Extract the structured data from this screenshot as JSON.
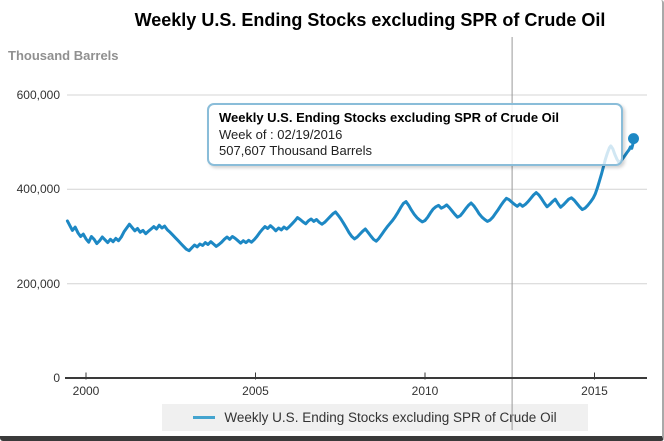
{
  "title": "Weekly U.S. Ending Stocks excluding SPR of Crude Oil",
  "y_axis_label": "Thousand Barrels",
  "tooltip": {
    "title": "Weekly U.S. Ending Stocks excluding SPR of Crude Oil",
    "week_label": "Week of : 02/19/2016",
    "value_label": "507,607 Thousand Barrels"
  },
  "legend": {
    "label": "Weekly U.S. Ending Stocks excluding SPR of Crude Oil"
  },
  "colors": {
    "series": "#1d88c4",
    "legend_dash": "#44a4cf",
    "grid": "#d4d4d4",
    "axis": "#3a3a3a",
    "crosshair": "#999999",
    "tooltip_border": "#8abdd9",
    "title_text": "#000000",
    "unit_text": "#909090",
    "tick_text": "#333333"
  },
  "chart_data": {
    "type": "line",
    "title": "Weekly U.S. Ending Stocks excluding SPR of Crude Oil",
    "xlabel": "",
    "ylabel": "Thousand Barrels",
    "xlim": [
      1999.44,
      2016.55
    ],
    "ylim": [
      0,
      620000
    ],
    "grid": "horizontal",
    "legend_position": "bottom",
    "x_ticks": [
      {
        "value": 2000,
        "label": "2000"
      },
      {
        "value": 2005,
        "label": "2005"
      },
      {
        "value": 2010,
        "label": "2010"
      },
      {
        "value": 2015,
        "label": "2015"
      }
    ],
    "y_ticks": [
      {
        "value": 0,
        "label": "0"
      },
      {
        "value": 200000,
        "label": "200,000"
      },
      {
        "value": 400000,
        "label": "400,000"
      },
      {
        "value": 600000,
        "label": "600,000"
      }
    ],
    "crosshair_year": 2012.57,
    "highlight_point": {
      "year": 2016.15,
      "value": 507607
    },
    "series": [
      {
        "name": "Weekly U.S. Ending Stocks excluding SPR of Crude Oil",
        "color": "#1d88c4",
        "points": [
          [
            1999.45,
            333000
          ],
          [
            1999.53,
            322000
          ],
          [
            1999.6,
            313000
          ],
          [
            1999.68,
            320000
          ],
          [
            1999.76,
            308000
          ],
          [
            1999.84,
            300000
          ],
          [
            1999.92,
            305000
          ],
          [
            2000.0,
            295000
          ],
          [
            2000.08,
            288000
          ],
          [
            2000.16,
            300000
          ],
          [
            2000.24,
            294000
          ],
          [
            2000.32,
            285000
          ],
          [
            2000.4,
            291000
          ],
          [
            2000.48,
            299000
          ],
          [
            2000.56,
            293000
          ],
          [
            2000.64,
            287000
          ],
          [
            2000.72,
            294000
          ],
          [
            2000.8,
            289000
          ],
          [
            2000.88,
            296000
          ],
          [
            2000.96,
            291000
          ],
          [
            2001.04,
            299000
          ],
          [
            2001.12,
            310000
          ],
          [
            2001.2,
            318000
          ],
          [
            2001.28,
            326000
          ],
          [
            2001.36,
            319000
          ],
          [
            2001.44,
            312000
          ],
          [
            2001.52,
            317000
          ],
          [
            2001.6,
            309000
          ],
          [
            2001.68,
            313000
          ],
          [
            2001.76,
            306000
          ],
          [
            2001.84,
            311000
          ],
          [
            2001.92,
            316000
          ],
          [
            2002.0,
            321000
          ],
          [
            2002.08,
            316000
          ],
          [
            2002.16,
            324000
          ],
          [
            2002.24,
            318000
          ],
          [
            2002.32,
            322000
          ],
          [
            2002.4,
            314000
          ],
          [
            2002.48,
            309000
          ],
          [
            2002.56,
            303000
          ],
          [
            2002.64,
            297000
          ],
          [
            2002.72,
            291000
          ],
          [
            2002.8,
            285000
          ],
          [
            2002.88,
            279000
          ],
          [
            2002.96,
            273000
          ],
          [
            2003.04,
            270000
          ],
          [
            2003.12,
            276000
          ],
          [
            2003.2,
            282000
          ],
          [
            2003.28,
            278000
          ],
          [
            2003.36,
            284000
          ],
          [
            2003.44,
            281000
          ],
          [
            2003.52,
            287000
          ],
          [
            2003.6,
            283000
          ],
          [
            2003.68,
            289000
          ],
          [
            2003.76,
            284000
          ],
          [
            2003.84,
            279000
          ],
          [
            2003.92,
            283000
          ],
          [
            2004.0,
            288000
          ],
          [
            2004.08,
            294000
          ],
          [
            2004.16,
            299000
          ],
          [
            2004.24,
            294000
          ],
          [
            2004.32,
            300000
          ],
          [
            2004.4,
            296000
          ],
          [
            2004.48,
            291000
          ],
          [
            2004.56,
            286000
          ],
          [
            2004.64,
            291000
          ],
          [
            2004.72,
            287000
          ],
          [
            2004.8,
            292000
          ],
          [
            2004.88,
            288000
          ],
          [
            2004.96,
            293000
          ],
          [
            2005.04,
            300000
          ],
          [
            2005.12,
            308000
          ],
          [
            2005.2,
            315000
          ],
          [
            2005.28,
            321000
          ],
          [
            2005.36,
            317000
          ],
          [
            2005.44,
            323000
          ],
          [
            2005.52,
            318000
          ],
          [
            2005.6,
            312000
          ],
          [
            2005.68,
            318000
          ],
          [
            2005.76,
            314000
          ],
          [
            2005.84,
            320000
          ],
          [
            2005.92,
            316000
          ],
          [
            2006.0,
            321000
          ],
          [
            2006.08,
            327000
          ],
          [
            2006.16,
            333000
          ],
          [
            2006.24,
            340000
          ],
          [
            2006.32,
            336000
          ],
          [
            2006.4,
            331000
          ],
          [
            2006.48,
            327000
          ],
          [
            2006.56,
            333000
          ],
          [
            2006.64,
            337000
          ],
          [
            2006.72,
            332000
          ],
          [
            2006.8,
            336000
          ],
          [
            2006.88,
            330000
          ],
          [
            2006.96,
            326000
          ],
          [
            2007.04,
            330000
          ],
          [
            2007.12,
            336000
          ],
          [
            2007.2,
            342000
          ],
          [
            2007.28,
            348000
          ],
          [
            2007.36,
            352000
          ],
          [
            2007.44,
            345000
          ],
          [
            2007.52,
            337000
          ],
          [
            2007.6,
            328000
          ],
          [
            2007.68,
            318000
          ],
          [
            2007.76,
            308000
          ],
          [
            2007.84,
            300000
          ],
          [
            2007.92,
            295000
          ],
          [
            2008.0,
            299000
          ],
          [
            2008.08,
            305000
          ],
          [
            2008.16,
            311000
          ],
          [
            2008.24,
            316000
          ],
          [
            2008.32,
            309000
          ],
          [
            2008.4,
            301000
          ],
          [
            2008.48,
            294000
          ],
          [
            2008.56,
            290000
          ],
          [
            2008.64,
            296000
          ],
          [
            2008.72,
            304000
          ],
          [
            2008.8,
            312000
          ],
          [
            2008.88,
            320000
          ],
          [
            2008.96,
            327000
          ],
          [
            2009.04,
            334000
          ],
          [
            2009.12,
            342000
          ],
          [
            2009.2,
            351000
          ],
          [
            2009.28,
            361000
          ],
          [
            2009.36,
            370000
          ],
          [
            2009.44,
            374000
          ],
          [
            2009.52,
            366000
          ],
          [
            2009.6,
            356000
          ],
          [
            2009.68,
            347000
          ],
          [
            2009.76,
            340000
          ],
          [
            2009.84,
            335000
          ],
          [
            2009.92,
            331000
          ],
          [
            2010.0,
            334000
          ],
          [
            2010.08,
            341000
          ],
          [
            2010.16,
            350000
          ],
          [
            2010.24,
            358000
          ],
          [
            2010.32,
            363000
          ],
          [
            2010.4,
            366000
          ],
          [
            2010.48,
            360000
          ],
          [
            2010.56,
            363000
          ],
          [
            2010.64,
            367000
          ],
          [
            2010.72,
            361000
          ],
          [
            2010.8,
            354000
          ],
          [
            2010.88,
            347000
          ],
          [
            2010.96,
            341000
          ],
          [
            2011.04,
            344000
          ],
          [
            2011.12,
            351000
          ],
          [
            2011.2,
            359000
          ],
          [
            2011.28,
            366000
          ],
          [
            2011.36,
            371000
          ],
          [
            2011.44,
            365000
          ],
          [
            2011.52,
            357000
          ],
          [
            2011.6,
            348000
          ],
          [
            2011.68,
            341000
          ],
          [
            2011.76,
            336000
          ],
          [
            2011.84,
            332000
          ],
          [
            2011.92,
            335000
          ],
          [
            2012.0,
            341000
          ],
          [
            2012.08,
            349000
          ],
          [
            2012.16,
            357000
          ],
          [
            2012.24,
            366000
          ],
          [
            2012.32,
            374000
          ],
          [
            2012.4,
            381000
          ],
          [
            2012.48,
            378000
          ],
          [
            2012.56,
            373000
          ],
          [
            2012.64,
            368000
          ],
          [
            2012.72,
            364000
          ],
          [
            2012.8,
            369000
          ],
          [
            2012.88,
            364000
          ],
          [
            2012.96,
            368000
          ],
          [
            2013.04,
            374000
          ],
          [
            2013.12,
            381000
          ],
          [
            2013.2,
            388000
          ],
          [
            2013.28,
            393000
          ],
          [
            2013.36,
            388000
          ],
          [
            2013.44,
            380000
          ],
          [
            2013.52,
            371000
          ],
          [
            2013.6,
            363000
          ],
          [
            2013.68,
            368000
          ],
          [
            2013.76,
            374000
          ],
          [
            2013.84,
            379000
          ],
          [
            2013.92,
            370000
          ],
          [
            2014.0,
            362000
          ],
          [
            2014.08,
            367000
          ],
          [
            2014.16,
            373000
          ],
          [
            2014.24,
            379000
          ],
          [
            2014.32,
            382000
          ],
          [
            2014.4,
            377000
          ],
          [
            2014.48,
            370000
          ],
          [
            2014.56,
            363000
          ],
          [
            2014.64,
            357000
          ],
          [
            2014.72,
            360000
          ],
          [
            2014.8,
            366000
          ],
          [
            2014.88,
            373000
          ],
          [
            2014.96,
            381000
          ],
          [
            2015.02,
            390000
          ],
          [
            2015.08,
            402000
          ],
          [
            2015.14,
            416000
          ],
          [
            2015.2,
            431000
          ],
          [
            2015.26,
            447000
          ],
          [
            2015.32,
            463000
          ],
          [
            2015.38,
            477000
          ],
          [
            2015.44,
            488000
          ],
          [
            2015.48,
            492000
          ],
          [
            2015.54,
            486000
          ],
          [
            2015.6,
            474000
          ],
          [
            2015.66,
            464000
          ],
          [
            2015.72,
            457000
          ],
          [
            2015.78,
            460000
          ],
          [
            2015.84,
            466000
          ],
          [
            2015.9,
            472000
          ],
          [
            2015.96,
            478000
          ],
          [
            2016.02,
            484000
          ],
          [
            2016.06,
            490000
          ],
          [
            2016.1,
            487000
          ],
          [
            2016.13,
            495000
          ],
          [
            2016.15,
            507607
          ]
        ]
      }
    ]
  }
}
